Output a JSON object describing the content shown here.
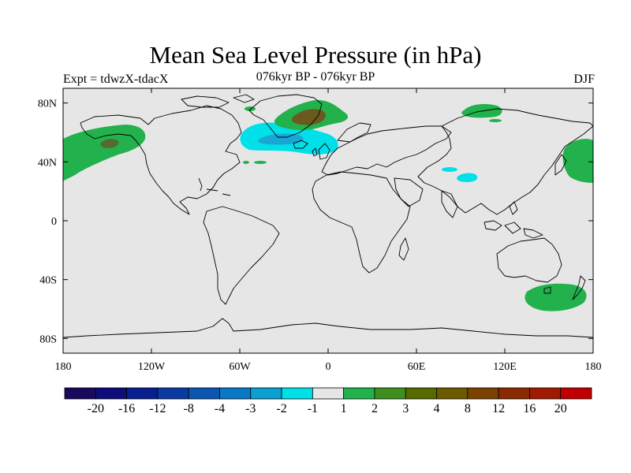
{
  "title": "Mean Sea Level Pressure (in hPa)",
  "subtitle": "076kyr BP - 076kyr BP",
  "left_label": "Expt = tdwzX-tdacX",
  "right_label": "DJF",
  "map": {
    "background_color": "#e6e6e6",
    "coastline_color": "#000000",
    "lat_ticks": [
      "80N",
      "40N",
      "0",
      "40S",
      "80S"
    ],
    "lon_ticks": [
      "180",
      "120W",
      "60W",
      "0",
      "60E",
      "120E",
      "180"
    ]
  },
  "anomalies": [
    {
      "region": "North Pacific",
      "sign": "positive",
      "class": "1 to 2",
      "color": "#22b14c"
    },
    {
      "region": "North Pacific core",
      "sign": "positive",
      "class": "3 to 4",
      "color": "#556b2f"
    },
    {
      "region": "North Atlantic / Iceland",
      "sign": "negative",
      "class": "-2 to -1",
      "color": "#00e0e8"
    },
    {
      "region": "North Atlantic core",
      "sign": "negative",
      "class": "-3 to -2",
      "color": "#1aa7d6"
    },
    {
      "region": "Greenland",
      "sign": "positive",
      "class": "1 to 2",
      "color": "#22b14c"
    },
    {
      "region": "Greenland Sea core",
      "sign": "positive",
      "class": "3 to 4",
      "color": "#6b5a1e"
    },
    {
      "region": "Central Asia",
      "sign": "negative",
      "class": "-2 to -1",
      "color": "#00e0e8"
    },
    {
      "region": "Siberia / Arctic",
      "sign": "positive",
      "class": "1 to 2",
      "color": "#22b14c"
    },
    {
      "region": "Northwest Pacific",
      "sign": "positive",
      "class": "1 to 2",
      "color": "#22b14c"
    },
    {
      "region": "Tasman Sea / South Pacific",
      "sign": "positive",
      "class": "1 to 2",
      "color": "#22b14c"
    }
  ],
  "colorbar": {
    "colors": [
      "#1a0a5e",
      "#0d0d7a",
      "#0a1f8f",
      "#0a3aa0",
      "#0a56b0",
      "#0a78c4",
      "#0aa0d2",
      "#00e0e8",
      "#e6e6e6",
      "#22b14c",
      "#3f8f1f",
      "#556b00",
      "#6b5a00",
      "#7a4200",
      "#8b2a00",
      "#a01a00",
      "#c00000"
    ],
    "labels": [
      "-20",
      "-16",
      "-12",
      "-8",
      "-4",
      "-3",
      "-2",
      "-1",
      "1",
      "2",
      "3",
      "4",
      "8",
      "12",
      "16",
      "20"
    ]
  }
}
